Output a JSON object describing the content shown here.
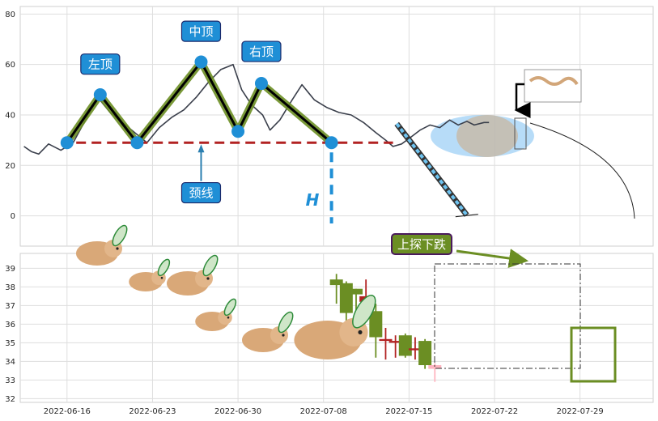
{
  "chart_data": [
    {
      "type": "line",
      "panel": "top",
      "ylim": [
        -12,
        83
      ],
      "yticks": [
        0,
        20,
        40,
        60,
        80
      ],
      "grid": true,
      "series": [
        {
          "role": "price",
          "color": "#3a3f4b",
          "points": [
            [
              -2,
              27.5
            ],
            [
              -1.4,
              25.5
            ],
            [
              -0.8,
              24.5
            ],
            [
              0,
              28.5
            ],
            [
              1,
              26
            ],
            [
              2,
              29
            ],
            [
              3,
              38
            ],
            [
              4,
              47
            ],
            [
              5,
              41
            ],
            [
              6,
              37
            ],
            [
              7,
              33
            ],
            [
              8,
              29
            ],
            [
              9,
              35
            ],
            [
              10,
              39
            ],
            [
              11,
              42
            ],
            [
              12,
              47
            ],
            [
              13,
              53
            ],
            [
              14,
              58
            ],
            [
              15,
              60
            ],
            [
              15.7,
              50
            ],
            [
              16.5,
              44
            ],
            [
              17.4,
              40
            ],
            [
              18,
              34
            ],
            [
              18.8,
              38
            ],
            [
              19.8,
              46
            ],
            [
              20.6,
              52
            ],
            [
              21.6,
              46
            ],
            [
              22.6,
              43
            ],
            [
              23.6,
              41
            ],
            [
              24.6,
              40
            ],
            [
              25.6,
              37
            ],
            [
              26.6,
              33
            ],
            [
              27.4,
              30
            ],
            [
              28,
              27.5
            ],
            [
              28.7,
              28.5
            ],
            [
              29.4,
              31
            ],
            [
              30.2,
              34
            ],
            [
              31,
              36
            ],
            [
              31.8,
              35
            ],
            [
              32.6,
              38
            ],
            [
              33.3,
              36
            ],
            [
              34,
              37.5
            ],
            [
              34.6,
              36
            ],
            [
              35.4,
              37
            ],
            [
              35.8,
              37
            ]
          ]
        },
        {
          "role": "pattern-line",
          "color": "#6b8e23",
          "points": [
            [
              1.5,
              29
            ],
            [
              4.2,
              48
            ],
            [
              7.2,
              29
            ],
            [
              12.4,
              61
            ],
            [
              15.4,
              33.5
            ],
            [
              17.3,
              52.5
            ],
            [
              23,
              29
            ]
          ]
        },
        {
          "role": "neckline",
          "color": "#b22222",
          "dashed": true,
          "points": [
            [
              1,
              29
            ],
            [
              28,
              29
            ]
          ]
        },
        {
          "role": "projection",
          "color": "#1e90ff",
          "points": [
            [
              28.3,
              36.5
            ],
            [
              34,
              0.3
            ]
          ]
        }
      ],
      "peaks": [
        {
          "x": 1.5,
          "y": 29
        },
        {
          "x": 4.2,
          "y": 48
        },
        {
          "x": 7.2,
          "y": 29
        },
        {
          "x": 12.4,
          "y": 61
        },
        {
          "x": 15.4,
          "y": 33.5
        },
        {
          "x": 17.3,
          "y": 52.5
        },
        {
          "x": 23,
          "y": 29
        }
      ],
      "labels": [
        {
          "text": "左顶",
          "x": 4.2,
          "y": 60
        },
        {
          "text": "中顶",
          "x": 12.4,
          "y": 73
        },
        {
          "text": "右顶",
          "x": 17.3,
          "y": 65
        },
        {
          "text": "颈线",
          "x": 12.4,
          "y": 9
        }
      ],
      "height_marker": {
        "text": "H",
        "x": 23,
        "y_from": 29,
        "y_to": -3
      }
    },
    {
      "type": "candlestick",
      "panel": "bottom",
      "ylim": [
        31.8,
        39.8
      ],
      "yticks": [
        32,
        33,
        34,
        35,
        36,
        37,
        38,
        39
      ],
      "grid": true,
      "categories": [
        "2022-06-16",
        "2022-06-23",
        "2022-06-30",
        "2022-07-08",
        "2022-07-15",
        "2022-07-22",
        "2022-07-29"
      ],
      "candles": [
        {
          "x": 23.4,
          "open": 38.4,
          "close": 38.1,
          "high": 38.7,
          "low": 37.1,
          "color": "#6b8e23"
        },
        {
          "x": 24.2,
          "open": 38.2,
          "close": 36.6,
          "high": 38.3,
          "low": 36.1,
          "color": "#6b8e23"
        },
        {
          "x": 25.0,
          "open": 37.9,
          "close": 37.6,
          "high": 37.9,
          "low": 36.5,
          "color": "#6b8e23"
        },
        {
          "x": 25.8,
          "open": 37.5,
          "close": 37.2,
          "high": 38.4,
          "low": 36.6,
          "color": "#b22222"
        },
        {
          "x": 26.6,
          "open": 36.7,
          "close": 35.3,
          "high": 37.1,
          "low": 34.2,
          "color": "#6b8e23"
        },
        {
          "x": 27.4,
          "open": 35.2,
          "close": 35.1,
          "high": 35.8,
          "low": 34.1,
          "color": "#b22222"
        },
        {
          "x": 28.2,
          "open": 35.1,
          "close": 35.0,
          "high": 35.4,
          "low": 34.2,
          "color": "#b22222"
        },
        {
          "x": 29.0,
          "open": 35.4,
          "close": 34.3,
          "high": 35.5,
          "low": 34.2,
          "color": "#6b8e23"
        },
        {
          "x": 29.8,
          "open": 34.7,
          "close": 34.6,
          "high": 35.3,
          "low": 34.1,
          "color": "#b22222"
        },
        {
          "x": 30.6,
          "open": 35.1,
          "close": 33.8,
          "high": 35.2,
          "low": 33.6,
          "color": "#6b8e23"
        },
        {
          "x": 31.4,
          "open": 33.8,
          "close": 33.6,
          "high": 33.9,
          "low": 32.9,
          "color": "#ffb6c1"
        }
      ],
      "annotation": {
        "text": "上探下跌"
      }
    }
  ]
}
